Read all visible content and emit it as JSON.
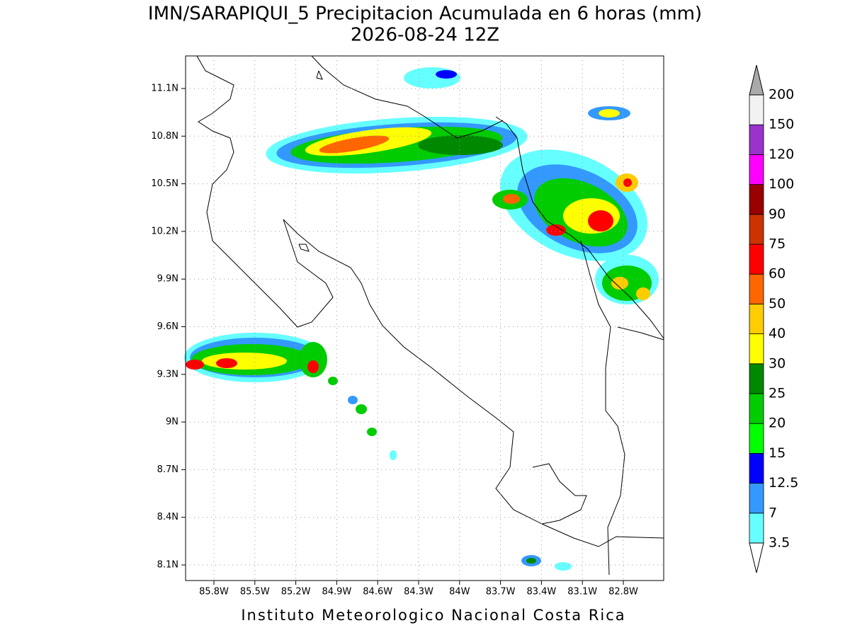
{
  "title": "IMN/SARAPIQUI_5 Precipitacion Acumulada en 6 horas (mm)",
  "subtitle": "2026-08-24 12Z",
  "map": {
    "lon_ticks": [
      "85.8W",
      "85.5W",
      "85.2W",
      "84.9W",
      "84.6W",
      "84.3W",
      "84W",
      "83.7W",
      "83.4W",
      "83.1W",
      "82.8W"
    ],
    "lat_ticks": [
      "11.1N",
      "10.8N",
      "10.5N",
      "10.2N",
      "9.9N",
      "9.6N",
      "9.3N",
      "9N",
      "8.7N",
      "8.4N",
      "8.1N"
    ]
  },
  "legend": {
    "levels": [
      3.5,
      7,
      12.5,
      15,
      20,
      25,
      30,
      40,
      50,
      60,
      75,
      90,
      100,
      120,
      150,
      200
    ],
    "colors": [
      "#66ffff",
      "#3399ff",
      "#0000ff",
      "#00ff00",
      "#00cc00",
      "#008800",
      "#ffff00",
      "#ffcc00",
      "#ff6600",
      "#ff0000",
      "#cc3300",
      "#990000",
      "#ff00ff",
      "#9933cc",
      "#f2f2f2"
    ],
    "over_color": "#aaaaaa",
    "under_color": "#ffffff"
  },
  "footer": "Instituto Meteorologico Nacional Costa Rica"
}
